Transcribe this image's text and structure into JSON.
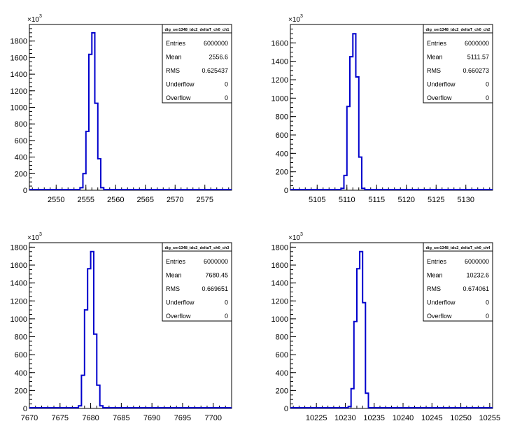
{
  "chart_data": [
    {
      "type": "histogram",
      "title": "dig_ser1348_tdc2_deltaT_ch0_ch1",
      "y_exponent_label": "×10",
      "y_exponent_sup": "3",
      "xlim": [
        2545.5,
        2579.5
      ],
      "ylim": [
        0,
        2000
      ],
      "x_ticks": [
        2550,
        2555,
        2560,
        2565,
        2570,
        2575
      ],
      "y_ticks": [
        0,
        200,
        400,
        600,
        800,
        1000,
        1200,
        1400,
        1600,
        1800
      ],
      "bin_edges": [
        2554,
        2554.5,
        2555,
        2555.5,
        2556,
        2556.5,
        2557,
        2557.5,
        2558
      ],
      "values": [
        30,
        200,
        710,
        1640,
        1900,
        1050,
        380,
        30
      ],
      "stats": [
        {
          "label": "Entries",
          "value": "6000000"
        },
        {
          "label": "Mean",
          "value": "2556.6"
        },
        {
          "label": "RMS",
          "value": "0.625437"
        },
        {
          "label": "Underflow",
          "value": "0"
        },
        {
          "label": "Overflow",
          "value": "0"
        }
      ]
    },
    {
      "type": "histogram",
      "title": "dig_ser1348_tdc2_deltaT_ch0_ch2",
      "y_exponent_label": "×10",
      "y_exponent_sup": "3",
      "xlim": [
        5100.5,
        5134.5
      ],
      "ylim": [
        0,
        1800
      ],
      "x_ticks": [
        5105,
        5110,
        5115,
        5120,
        5125,
        5130
      ],
      "y_ticks": [
        0,
        200,
        400,
        600,
        800,
        1000,
        1200,
        1400,
        1600
      ],
      "bin_edges": [
        5109,
        5109.5,
        5110,
        5110.5,
        5111,
        5111.5,
        5112,
        5112.5,
        5113,
        5113.5
      ],
      "values": [
        20,
        160,
        910,
        1450,
        1700,
        1230,
        360,
        20,
        0
      ],
      "stats": [
        {
          "label": "Entries",
          "value": "6000000"
        },
        {
          "label": "Mean",
          "value": "5111.57"
        },
        {
          "label": "RMS",
          "value": "0.660273"
        },
        {
          "label": "Underflow",
          "value": "0"
        },
        {
          "label": "Overflow",
          "value": "0"
        }
      ]
    },
    {
      "type": "histogram",
      "title": "dig_ser1348_tdc2_deltaT_ch0_ch3",
      "y_exponent_label": "×10",
      "y_exponent_sup": "3",
      "xlim": [
        7670,
        7703
      ],
      "ylim": [
        0,
        1850
      ],
      "x_ticks": [
        7670,
        7675,
        7680,
        7685,
        7690,
        7695,
        7700
      ],
      "y_ticks": [
        0,
        200,
        400,
        600,
        800,
        1000,
        1200,
        1400,
        1600,
        1800
      ],
      "bin_edges": [
        7678,
        7678.5,
        7679,
        7679.5,
        7680,
        7680.5,
        7681,
        7681.5,
        7682
      ],
      "values": [
        30,
        370,
        1100,
        1560,
        1750,
        830,
        260,
        30
      ],
      "stats": [
        {
          "label": "Entries",
          "value": "6000000"
        },
        {
          "label": "Mean",
          "value": "7680.45"
        },
        {
          "label": "RMS",
          "value": "0.669651"
        },
        {
          "label": "Underflow",
          "value": "0"
        },
        {
          "label": "Overflow",
          "value": "0"
        }
      ]
    },
    {
      "type": "histogram",
      "title": "dig_ser1348_tdc2_deltaT_ch0_ch4",
      "y_exponent_label": "×10",
      "y_exponent_sup": "3",
      "xlim": [
        10220.5,
        10255.5
      ],
      "ylim": [
        0,
        1850
      ],
      "x_ticks": [
        10225,
        10230,
        10235,
        10240,
        10245,
        10250,
        10255
      ],
      "y_ticks": [
        0,
        200,
        400,
        600,
        800,
        1000,
        1200,
        1400,
        1600,
        1800
      ],
      "bin_edges": [
        10230.5,
        10231,
        10231.5,
        10232,
        10232.5,
        10233,
        10233.5,
        10234
      ],
      "values": [
        20,
        220,
        970,
        1560,
        1750,
        1180,
        170
      ],
      "stats": [
        {
          "label": "Entries",
          "value": "6000000"
        },
        {
          "label": "Mean",
          "value": "10232.6"
        },
        {
          "label": "RMS",
          "value": "0.674061"
        },
        {
          "label": "Underflow",
          "value": "0"
        },
        {
          "label": "Overflow",
          "value": "0"
        }
      ]
    }
  ],
  "style": {
    "line_color": "#0000cc",
    "frame_color": "#000000",
    "background": "#ffffff"
  }
}
